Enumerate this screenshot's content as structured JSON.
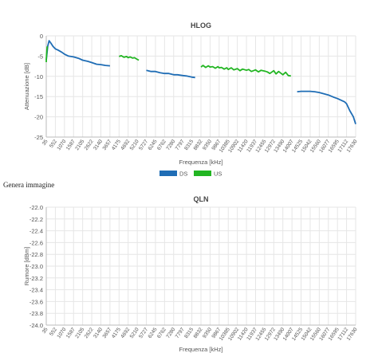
{
  "generate_link": "Genera immagine",
  "colors": {
    "ds": "#1f6db5",
    "us": "#22b522",
    "grid": "#e6e6e6",
    "text": "#555555"
  },
  "chart_data": [
    {
      "type": "line",
      "title": "HLOG",
      "xlabel": "Frequenza [kHz]",
      "ylabel": "Attenuazione [dB]",
      "ylim": [
        -25,
        0
      ],
      "yticks": [
        "0",
        "-5",
        "-10",
        "-15",
        "-20",
        "-25"
      ],
      "ytick_values": [
        0,
        -5,
        -10,
        -15,
        -20,
        -25
      ],
      "xlim": [
        35,
        17630
      ],
      "xticks": [
        "35",
        "552",
        "1070",
        "1587",
        "2105",
        "2622",
        "3140",
        "3657",
        "4175",
        "4692",
        "5210",
        "5727",
        "6245",
        "6762",
        "7280",
        "7797",
        "8315",
        "8832",
        "9350",
        "9867",
        "10385",
        "10902",
        "11420",
        "11937",
        "12455",
        "12972",
        "13490",
        "14007",
        "14525",
        "15042",
        "15560",
        "16077",
        "16595",
        "17112",
        "17630"
      ],
      "grid": true,
      "legend_position": "bottom",
      "series": [
        {
          "name": "DS",
          "segments": [
            {
              "x": [
                35,
                120,
                200,
                300,
                420,
                552,
                700,
                900,
                1070,
                1300,
                1587,
                1900,
                2105,
                2400,
                2622,
                2900,
                3140,
                3400,
                3657
              ],
              "y": [
                -6.0,
                -2.5,
                -1.2,
                -1.8,
                -2.6,
                -3.2,
                -3.5,
                -4.0,
                -4.5,
                -5.0,
                -5.2,
                -5.6,
                -6.0,
                -6.3,
                -6.6,
                -7.0,
                -7.1,
                -7.3,
                -7.4
              ]
            },
            {
              "x": [
                5727,
                6000,
                6245,
                6500,
                6762,
                7000,
                7280,
                7500,
                7797,
                8000,
                8315,
                8500
              ],
              "y": [
                -8.5,
                -8.8,
                -8.8,
                -9.1,
                -9.3,
                -9.3,
                -9.6,
                -9.6,
                -9.8,
                -9.9,
                -10.2,
                -10.3
              ]
            },
            {
              "x": [
                14300,
                14525,
                15042,
                15300,
                15560,
                16077,
                16400,
                16595,
                17000,
                17112,
                17300,
                17500,
                17630
              ],
              "y": [
                -13.8,
                -13.7,
                -13.7,
                -13.8,
                -14.0,
                -14.6,
                -15.2,
                -15.5,
                -16.3,
                -16.8,
                -18.5,
                -20.0,
                -21.8
              ]
            }
          ]
        },
        {
          "name": "US",
          "segments": [
            {
              "x": [
                35,
                50,
                70,
                90,
                110
              ],
              "y": [
                -6.5,
                -4.8,
                -3.5,
                -2.8,
                -2.6
              ]
            },
            {
              "x": [
                4175,
                4300,
                4450,
                4600,
                4692,
                4800,
                4950,
                5050,
                5210,
                5300
              ],
              "y": [
                -5.1,
                -4.9,
                -5.3,
                -5.1,
                -5.4,
                -5.2,
                -5.5,
                -5.4,
                -5.8,
                -6.0
              ]
            },
            {
              "x": [
                8832,
                8950,
                9100,
                9250,
                9350,
                9500,
                9650,
                9800,
                9867,
                10000,
                10150,
                10300,
                10385,
                10550,
                10700,
                10902,
                11050,
                11200,
                11420,
                11550,
                11700,
                11937,
                12100,
                12250,
                12455,
                12600,
                12750,
                12972,
                13100,
                13250,
                13490,
                13650,
                13800,
                13950
              ],
              "y": [
                -7.7,
                -7.3,
                -7.8,
                -7.4,
                -7.7,
                -7.6,
                -8.0,
                -7.6,
                -7.9,
                -7.8,
                -8.2,
                -7.9,
                -8.3,
                -7.9,
                -8.4,
                -8.1,
                -8.6,
                -8.2,
                -8.5,
                -8.3,
                -8.8,
                -8.4,
                -8.9,
                -8.5,
                -8.7,
                -8.9,
                -9.3,
                -8.6,
                -9.4,
                -8.8,
                -9.6,
                -9.0,
                -9.8,
                -9.9
              ]
            }
          ]
        }
      ]
    },
    {
      "type": "line",
      "title": "QLN",
      "xlabel": "Frequenza [kHz]",
      "ylabel": "Rumore [dBm]",
      "ylim": [
        -24.0,
        -22.0
      ],
      "yticks": [
        "-22.0",
        "-22.2",
        "-22.4",
        "-22.6",
        "-22.8",
        "-23.0",
        "-23.2",
        "-23.4",
        "-23.6",
        "-23.8",
        "-24.0"
      ],
      "ytick_values": [
        -22.0,
        -22.2,
        -22.4,
        -22.6,
        -22.8,
        -23.0,
        -23.2,
        -23.4,
        -23.6,
        -23.8,
        -24.0
      ],
      "xlim": [
        35,
        17630
      ],
      "xticks": [
        "35",
        "552",
        "1070",
        "1587",
        "2105",
        "2622",
        "3140",
        "3657",
        "4175",
        "4692",
        "5210",
        "5727",
        "6245",
        "6762",
        "7280",
        "7797",
        "8315",
        "8832",
        "9350",
        "9867",
        "10385",
        "10902",
        "11420",
        "11937",
        "12455",
        "12972",
        "13490",
        "14007",
        "14525",
        "15042",
        "15560",
        "16077",
        "16595",
        "17112",
        "17630"
      ],
      "grid": true,
      "series": []
    }
  ]
}
